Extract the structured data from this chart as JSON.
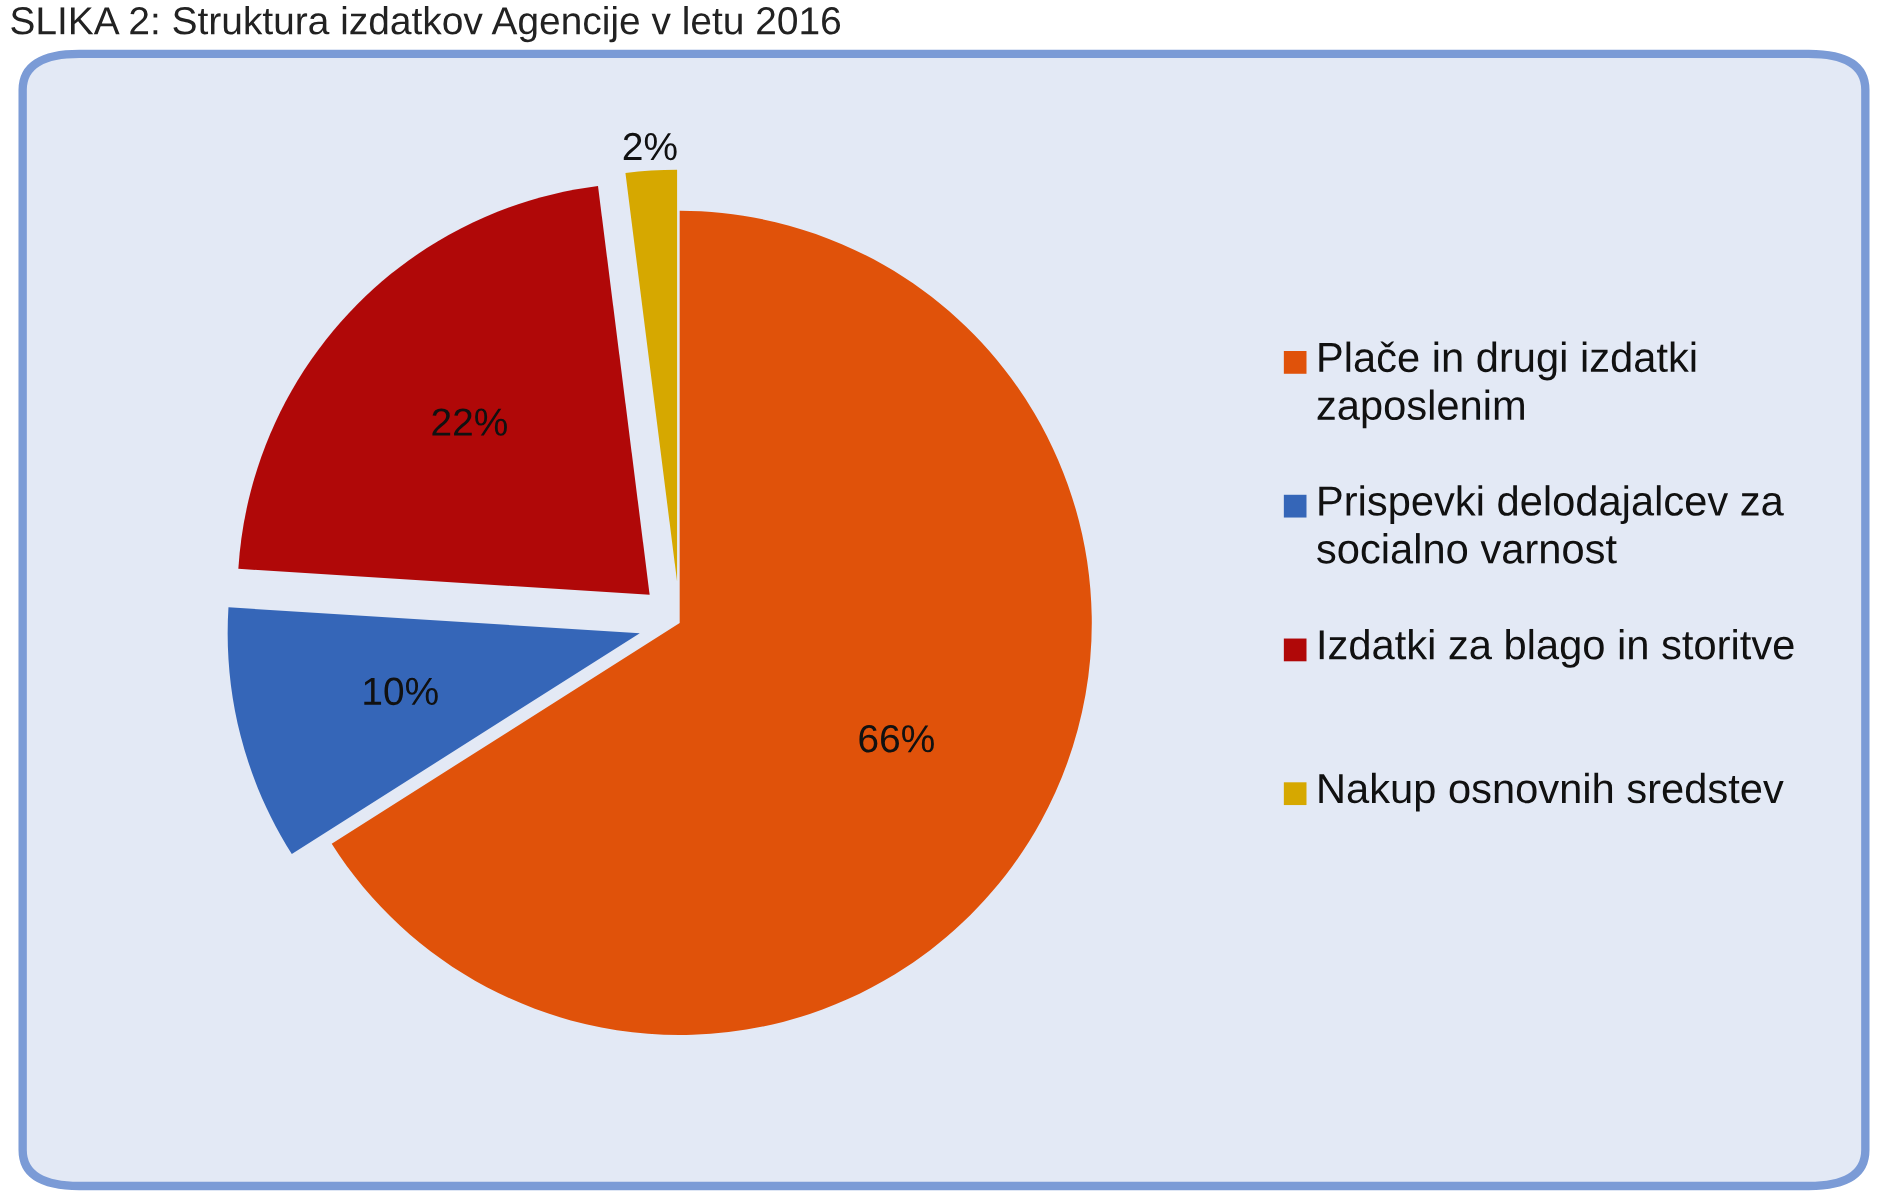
{
  "chart_data": {
    "type": "pie",
    "title": "SLIKA 2: Struktura izdatkov Agencije v letu 2016",
    "categories": [
      "Plače in drugi izdatki zaposlenim",
      "Prispevki delodajalcev za socialno varnost",
      "Izdatki za blago in storitve",
      "Nakup osnovnih sredstev"
    ],
    "values": [
      66,
      10,
      22,
      2
    ],
    "colors": [
      "#e0520a",
      "#3566b8",
      "#b00808",
      "#d6a800"
    ],
    "value_labels": [
      "66%",
      "10%",
      "22%",
      "2%"
    ],
    "legend": "right"
  }
}
